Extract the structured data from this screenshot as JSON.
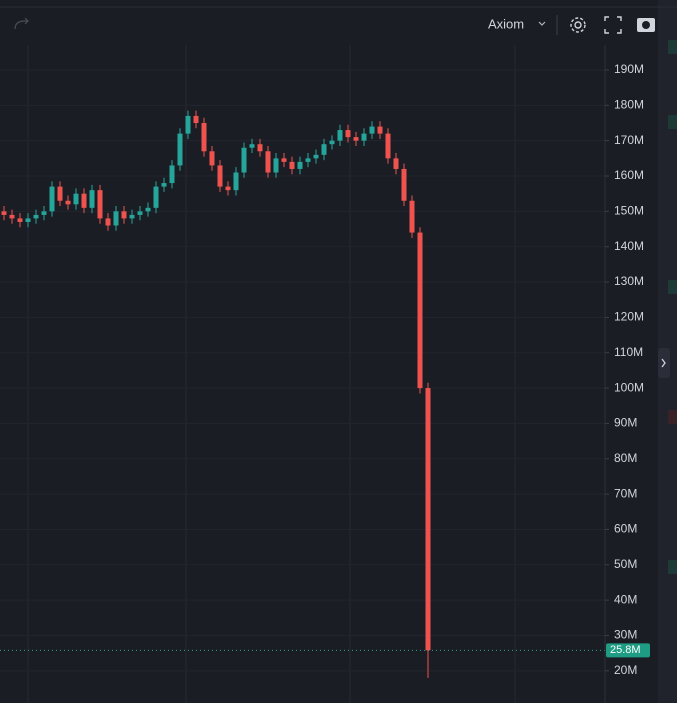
{
  "toolbar": {
    "layout_name": "Axiom"
  },
  "chart_data": {
    "type": "candlestick",
    "up_color": "#26a69a",
    "down_color": "#ef5350",
    "open": [
      150,
      149,
      148,
      147,
      148,
      149,
      150,
      157,
      153,
      152,
      155,
      151,
      156,
      148,
      146,
      150,
      148,
      149,
      150,
      151,
      157,
      158,
      163,
      172,
      177,
      175,
      167,
      163,
      157,
      156,
      161,
      168,
      169,
      167,
      161,
      165,
      164,
      162,
      164,
      165,
      166,
      169,
      170,
      173,
      171,
      170,
      172,
      174,
      172,
      165,
      162,
      153,
      144,
      100
    ],
    "high": [
      151.5,
      150.5,
      149.5,
      149.5,
      150.5,
      151.5,
      158.5,
      158.5,
      154.5,
      156.5,
      156.5,
      157.5,
      157.5,
      149.5,
      151.5,
      151.5,
      150.5,
      151.5,
      152.5,
      158.5,
      159.5,
      164.5,
      173.5,
      178.5,
      178.5,
      176.5,
      168.5,
      164.5,
      158.5,
      162.5,
      169.5,
      170.5,
      170.5,
      168.5,
      166.5,
      166.5,
      165.5,
      165.5,
      166.5,
      167.5,
      170.5,
      171.5,
      174.5,
      174.5,
      172.5,
      173.5,
      175.5,
      175.5,
      173.5,
      166.5,
      163.5,
      154.5,
      145.5,
      101.5
    ],
    "low": [
      147.5,
      146.5,
      145.5,
      145.5,
      146.5,
      147.5,
      148.5,
      151.5,
      150.5,
      150.5,
      149.5,
      149.5,
      146.5,
      144.5,
      144.5,
      146.5,
      146.5,
      147.5,
      148.5,
      149.5,
      155.5,
      156.5,
      161.5,
      170.5,
      173.5,
      165.5,
      161.5,
      155.5,
      154.5,
      154.5,
      159.5,
      166.5,
      165.5,
      159.5,
      159.5,
      162.5,
      160.5,
      160.5,
      162.5,
      163.5,
      164.5,
      167.5,
      168.5,
      169.5,
      168.5,
      168.5,
      170.5,
      170.5,
      163.5,
      160.5,
      151.5,
      142.5,
      98.5,
      18
    ],
    "close": [
      149,
      148,
      147,
      148,
      149,
      150,
      157,
      153,
      152,
      155,
      151,
      156,
      148,
      146,
      150,
      148,
      149,
      150,
      151,
      157,
      158,
      163,
      172,
      177,
      175,
      167,
      163,
      157,
      156,
      161,
      168,
      169,
      167,
      161,
      165,
      164,
      162,
      164,
      165,
      166,
      169,
      170,
      173,
      171,
      170,
      172,
      174,
      172,
      165,
      162,
      153,
      144,
      100,
      25.8
    ],
    "close_labels_last": "25.8M",
    "ylim": [
      10.9,
      209.8
    ],
    "yticks": [
      {
        "value": 20,
        "label": "20M"
      },
      {
        "value": 30,
        "label": "30M"
      },
      {
        "value": 40,
        "label": "40M"
      },
      {
        "value": 50,
        "label": "50M"
      },
      {
        "value": 60,
        "label": "60M"
      },
      {
        "value": 70,
        "label": "70M"
      },
      {
        "value": 80,
        "label": "80M"
      },
      {
        "value": 90,
        "label": "90M"
      },
      {
        "value": 100,
        "label": "100M"
      },
      {
        "value": 110,
        "label": "110M"
      },
      {
        "value": 120,
        "label": "120M"
      },
      {
        "value": 130,
        "label": "130M"
      },
      {
        "value": 140,
        "label": "140M"
      },
      {
        "value": 150,
        "label": "150M"
      },
      {
        "value": 160,
        "label": "160M"
      },
      {
        "value": 170,
        "label": "170M"
      },
      {
        "value": 180,
        "label": "180M"
      },
      {
        "value": 190,
        "label": "190M"
      }
    ],
    "grid": true
  }
}
